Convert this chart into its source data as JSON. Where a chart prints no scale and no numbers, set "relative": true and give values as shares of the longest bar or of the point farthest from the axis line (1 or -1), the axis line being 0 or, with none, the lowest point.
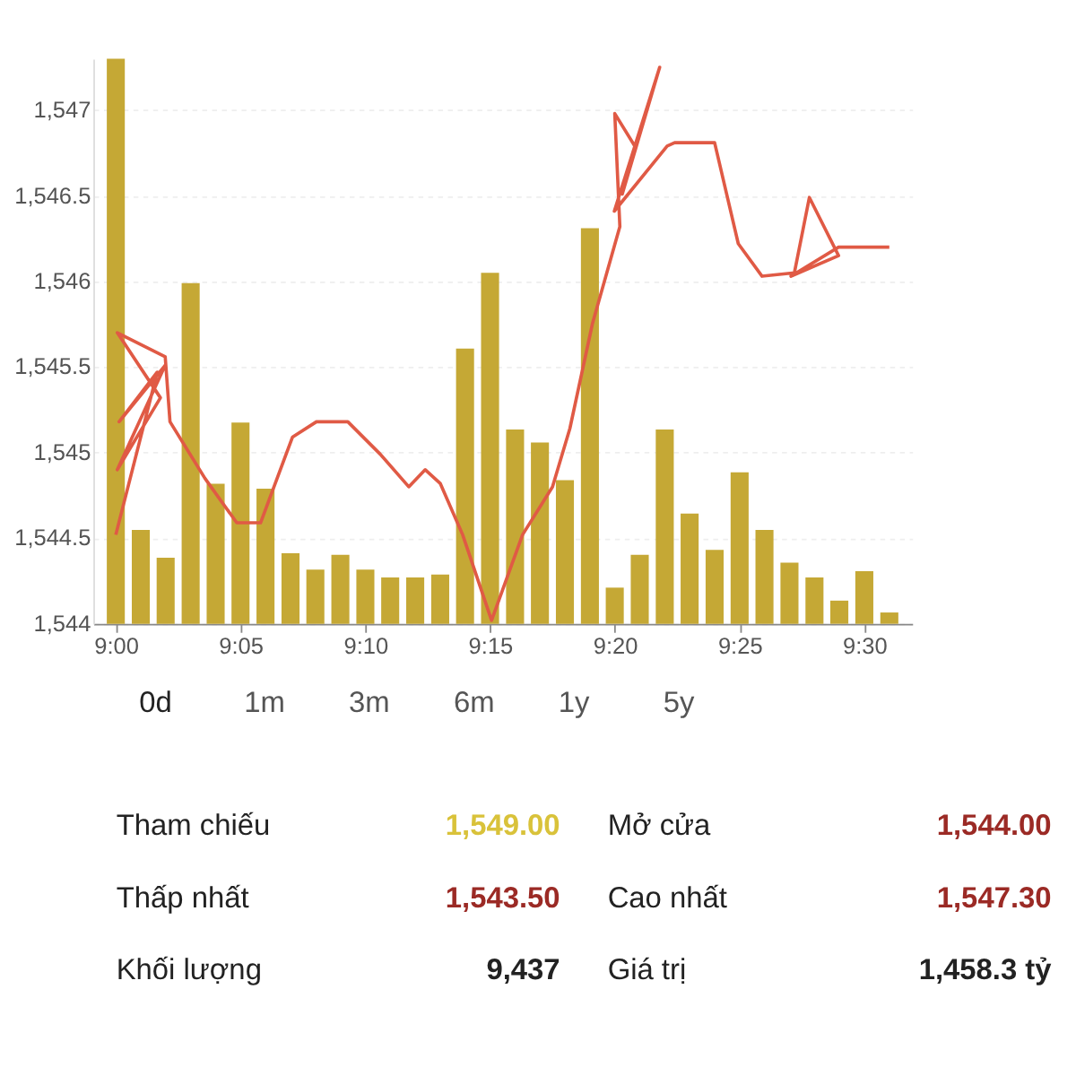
{
  "chart_data": [
    {
      "type": "bar",
      "relative": true,
      "color": "#c5a835",
      "tick_labels": "x",
      "x": [
        9,
        9.0167,
        9.0333,
        9.05,
        9.0667,
        9.0833,
        9.1,
        9.1167,
        9.1333,
        9.15,
        9.1667,
        9.1833,
        9.2,
        9.2167,
        9.2333,
        9.25,
        9.2667,
        9.2833,
        9.3,
        9.3167,
        9.3333,
        9.35,
        9.3667,
        9.3833,
        9.4,
        9.4167,
        9.4333,
        9.45,
        9.4667,
        9.4833,
        9.5,
        9.5167
      ],
      "xlim": [
        8.985,
        9.532
      ],
      "xticks": [
        {
          "value": 9,
          "label": "9:00"
        },
        {
          "value": 9.0833,
          "label": "9:05"
        },
        {
          "value": 9.1667,
          "label": "9:10"
        },
        {
          "value": 9.25,
          "label": "9:15"
        },
        {
          "value": 9.3333,
          "label": "9:20"
        },
        {
          "value": 9.4167,
          "label": "9:25"
        },
        {
          "value": 9.5,
          "label": "9:30"
        }
      ],
      "values": [
        1.0,
        0.166,
        0.117,
        0.603,
        0.248,
        0.356,
        0.239,
        0.125,
        0.096,
        0.122,
        0.096,
        0.082,
        0.082,
        0.087,
        0.487,
        0.621,
        0.344,
        0.321,
        0.254,
        0.7,
        0.064,
        0.122,
        0.344,
        0.195,
        0.131,
        0.268,
        0.166,
        0.108,
        0.082,
        0.041,
        0.093,
        0.02
      ]
    },
    {
      "type": "line",
      "color": "#e05a45",
      "tick_labels": "y",
      "grid": "y",
      "xlim": [
        8.985,
        9.532
      ],
      "ylim": [
        1544,
        1547.3
      ],
      "yticks": [
        {
          "value": 1544,
          "label": "1,544"
        },
        {
          "value": 1544.5,
          "label": "1,544.5"
        },
        {
          "value": 1545,
          "label": "1,545"
        },
        {
          "value": 1545.5,
          "label": "1,545.5"
        },
        {
          "value": 1546,
          "label": "1,546"
        },
        {
          "value": 1546.5,
          "label": "1,546.5"
        },
        {
          "value": 1547,
          "label": "1,547"
        }
      ],
      "x": [
        9,
        9.0277,
        9.0022,
        9.033,
        9.001,
        9.0298,
        9.001,
        9.033,
        9.0362,
        9.0595,
        9.0808,
        9.0967,
        9.118,
        9.134,
        9.155,
        9.1767,
        9.1957,
        9.2067,
        9.2167,
        9.2317,
        9.251,
        9.2717,
        9.2917,
        9.3033,
        9.3183,
        9.3367,
        9.3333,
        9.3467,
        9.3383,
        9.3633,
        9.333,
        9.3683,
        9.3733,
        9.4,
        9.4158,
        9.4317,
        9.4533,
        9.4633,
        9.4828,
        9.451,
        9.4828,
        9.5167
      ],
      "values": [
        1544.52,
        1545.47,
        1545.18,
        1545.51,
        1544.9,
        1545.32,
        1545.7,
        1545.56,
        1545.18,
        1544.85,
        1544.59,
        1544.59,
        1545.09,
        1545.18,
        1545.18,
        1544.99,
        1544.8,
        1544.9,
        1544.82,
        1544.52,
        1544.02,
        1544.52,
        1544.8,
        1545.14,
        1545.75,
        1546.32,
        1546.98,
        1546.79,
        1546.51,
        1547.25,
        1546.41,
        1546.79,
        1546.81,
        1546.81,
        1546.22,
        1546.03,
        1546.05,
        1546.49,
        1546.15,
        1546.03,
        1546.2,
        1546.2
      ]
    },
    {
      "type": "other",
      "annotations": [
        "0d",
        "1m",
        "3m",
        "6m",
        "1y",
        "5y",
        "Tham chiếu",
        "1,549.00",
        "Mở cửa",
        "1,544.00",
        "Thấp nhất",
        "1,543.50",
        "Cao nhất",
        "1,547.30",
        "Khối lượng",
        "9,437",
        "Giá trị",
        "1,458.3 tỷ"
      ],
      "colors": [
        "#222222",
        "#555555",
        "#555555",
        "#555555",
        "#555555",
        "#555555",
        "#222222",
        "#d9c23a",
        "#222222",
        "#9b2a25",
        "#222222",
        "#9b2a25",
        "#222222",
        "#9b2a25",
        "#222222",
        "#222222",
        "#222222",
        "#222222"
      ]
    }
  ]
}
